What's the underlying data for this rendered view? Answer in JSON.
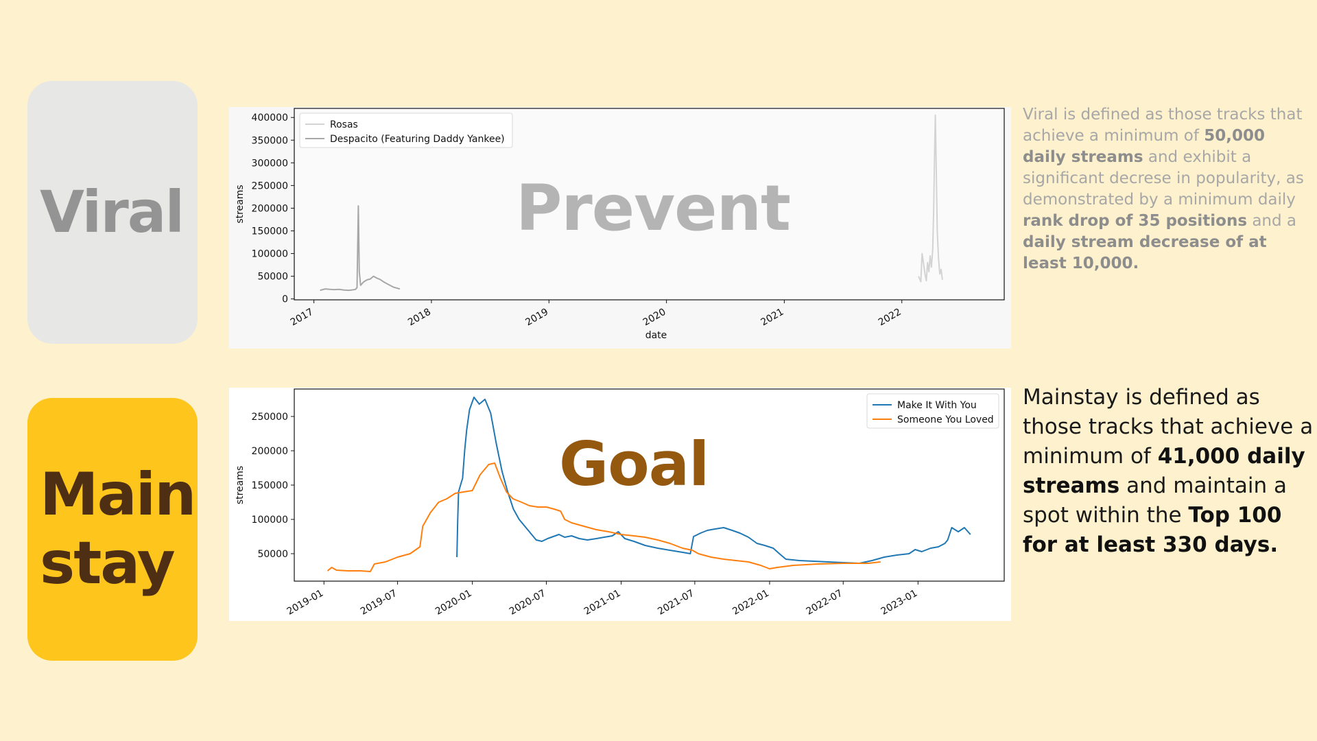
{
  "cards": {
    "viral": "Viral",
    "mainstay": "Main\nstay"
  },
  "overlays": {
    "prevent": "Prevent",
    "goal": "Goal"
  },
  "descriptions": {
    "viral": {
      "t1": "Viral is defined as those tracks that achieve a minimum of ",
      "b1": "50,000 daily streams",
      "t2": " and exhibit a significant decrese in popularity, as demonstrated by a minimum daily ",
      "b2": "rank drop of 35 positions",
      "t3": " and a ",
      "b3": "daily stream decrease of at least 10,000."
    },
    "mainstay": {
      "t1": "Mainstay is defined as those tracks that achieve a minimum of ",
      "b1": "41,000 daily streams",
      "t2": " and maintain a spot within the ",
      "b2": "Top 100 for at least 330 days."
    }
  },
  "chart_data": [
    {
      "type": "line",
      "xlabel": "date",
      "ylabel": "streams",
      "x_ticks": [
        "2017",
        "2018",
        "2019",
        "2020",
        "2021",
        "2022"
      ],
      "y_ticks": [
        0,
        50000,
        100000,
        150000,
        200000,
        250000,
        300000,
        350000,
        400000
      ],
      "xlim": [
        "2016-11-01",
        "2022-11-15"
      ],
      "ylim": [
        -2000,
        420000
      ],
      "legend": "top-left",
      "grid": false,
      "series": [
        {
          "name": "Rosas",
          "color": "#d3d3d3",
          "points": [
            [
              "2022-02-22",
              50000
            ],
            [
              "2022-03-01",
              38000
            ],
            [
              "2022-03-05",
              100000
            ],
            [
              "2022-03-10",
              75000
            ],
            [
              "2022-03-14",
              55000
            ],
            [
              "2022-03-18",
              40000
            ],
            [
              "2022-03-22",
              80000
            ],
            [
              "2022-03-26",
              60000
            ],
            [
              "2022-03-30",
              95000
            ],
            [
              "2022-04-03",
              70000
            ],
            [
              "2022-04-07",
              110000
            ],
            [
              "2022-04-10",
              200000
            ],
            [
              "2022-04-13",
              330000
            ],
            [
              "2022-04-15",
              405000
            ],
            [
              "2022-04-18",
              280000
            ],
            [
              "2022-04-21",
              150000
            ],
            [
              "2022-04-25",
              90000
            ],
            [
              "2022-04-29",
              55000
            ],
            [
              "2022-05-03",
              65000
            ],
            [
              "2022-05-07",
              42000
            ]
          ]
        },
        {
          "name": "Despacito (Featuring Daddy Yankee)",
          "color": "#a7a7a7",
          "points": [
            [
              "2017-01-20",
              19000
            ],
            [
              "2017-02-05",
              22000
            ],
            [
              "2017-02-20",
              21000
            ],
            [
              "2017-03-05",
              20500
            ],
            [
              "2017-03-20",
              21000
            ],
            [
              "2017-04-05",
              19500
            ],
            [
              "2017-04-20",
              19000
            ],
            [
              "2017-05-01",
              20000
            ],
            [
              "2017-05-10",
              21000
            ],
            [
              "2017-05-15",
              25000
            ],
            [
              "2017-05-19",
              205000
            ],
            [
              "2017-05-22",
              60000
            ],
            [
              "2017-05-26",
              30000
            ],
            [
              "2017-06-05",
              38000
            ],
            [
              "2017-06-15",
              42000
            ],
            [
              "2017-06-25",
              44000
            ],
            [
              "2017-07-05",
              50000
            ],
            [
              "2017-07-15",
              46000
            ],
            [
              "2017-07-25",
              43000
            ],
            [
              "2017-08-05",
              38000
            ],
            [
              "2017-08-15",
              34000
            ],
            [
              "2017-08-25",
              30000
            ],
            [
              "2017-09-05",
              26000
            ],
            [
              "2017-09-15",
              24000
            ],
            [
              "2017-09-25",
              22000
            ]
          ]
        }
      ]
    },
    {
      "type": "line",
      "xlabel": "",
      "ylabel": "streams",
      "x_ticks": [
        "2019-01",
        "2019-07",
        "2020-01",
        "2020-07",
        "2021-01",
        "2021-07",
        "2022-01",
        "2022-07",
        "2023-01"
      ],
      "y_ticks": [
        50000,
        100000,
        150000,
        200000,
        250000
      ],
      "xlim": [
        "2018-10-20",
        "2023-08-01"
      ],
      "ylim": [
        10000,
        290000
      ],
      "legend": "top-right",
      "grid": false,
      "series": [
        {
          "name": "Make It With You",
          "color": "#1f77b4",
          "points": [
            [
              "2019-11-24",
              45000
            ],
            [
              "2019-11-26",
              100000
            ],
            [
              "2019-11-28",
              140000
            ],
            [
              "2019-12-03",
              150000
            ],
            [
              "2019-12-08",
              160000
            ],
            [
              "2019-12-13",
              200000
            ],
            [
              "2019-12-18",
              230000
            ],
            [
              "2019-12-25",
              260000
            ],
            [
              "2020-01-05",
              278000
            ],
            [
              "2020-01-18",
              268000
            ],
            [
              "2020-02-01",
              275000
            ],
            [
              "2020-02-15",
              255000
            ],
            [
              "2020-02-29",
              210000
            ],
            [
              "2020-03-14",
              170000
            ],
            [
              "2020-03-28",
              140000
            ],
            [
              "2020-04-11",
              115000
            ],
            [
              "2020-04-25",
              100000
            ],
            [
              "2020-05-09",
              90000
            ],
            [
              "2020-05-23",
              80000
            ],
            [
              "2020-06-06",
              70000
            ],
            [
              "2020-06-20",
              68000
            ],
            [
              "2020-07-04",
              72000
            ],
            [
              "2020-07-18",
              75000
            ],
            [
              "2020-08-01",
              78000
            ],
            [
              "2020-08-15",
              74000
            ],
            [
              "2020-09-01",
              76000
            ],
            [
              "2020-09-20",
              72000
            ],
            [
              "2020-10-10",
              70000
            ],
            [
              "2020-11-01",
              72000
            ],
            [
              "2020-11-20",
              74000
            ],
            [
              "2020-12-10",
              76000
            ],
            [
              "2020-12-25",
              82000
            ],
            [
              "2021-01-10",
              72000
            ],
            [
              "2021-02-01",
              68000
            ],
            [
              "2021-03-01",
              62000
            ],
            [
              "2021-04-01",
              58000
            ],
            [
              "2021-05-01",
              55000
            ],
            [
              "2021-06-01",
              52000
            ],
            [
              "2021-06-20",
              50000
            ],
            [
              "2021-06-28",
              75000
            ],
            [
              "2021-07-15",
              80000
            ],
            [
              "2021-08-01",
              84000
            ],
            [
              "2021-08-20",
              86000
            ],
            [
              "2021-09-10",
              88000
            ],
            [
              "2021-10-01",
              84000
            ],
            [
              "2021-10-20",
              80000
            ],
            [
              "2021-11-10",
              74000
            ],
            [
              "2021-12-01",
              65000
            ],
            [
              "2021-12-20",
              62000
            ],
            [
              "2022-01-10",
              58000
            ],
            [
              "2022-01-25",
              50000
            ],
            [
              "2022-02-10",
              42000
            ],
            [
              "2022-03-15",
              40000
            ],
            [
              "2022-04-20",
              39000
            ],
            [
              "2022-05-25",
              38000
            ],
            [
              "2022-07-01",
              37000
            ],
            [
              "2022-08-10",
              36000
            ],
            [
              "2022-09-10",
              40000
            ],
            [
              "2022-10-10",
              45000
            ],
            [
              "2022-11-10",
              48000
            ],
            [
              "2022-12-10",
              50000
            ],
            [
              "2022-12-25",
              56000
            ],
            [
              "2023-01-10",
              53000
            ],
            [
              "2023-02-01",
              58000
            ],
            [
              "2023-02-20",
              60000
            ],
            [
              "2023-03-08",
              65000
            ],
            [
              "2023-03-15",
              70000
            ],
            [
              "2023-03-25",
              88000
            ],
            [
              "2023-04-10",
              82000
            ],
            [
              "2023-04-25",
              88000
            ],
            [
              "2023-05-10",
              78000
            ]
          ]
        },
        {
          "name": "Someone You Loved",
          "color": "#ff7f0e",
          "points": [
            [
              "2019-01-10",
              25000
            ],
            [
              "2019-01-20",
              30000
            ],
            [
              "2019-02-01",
              26000
            ],
            [
              "2019-03-01",
              25000
            ],
            [
              "2019-04-01",
              25000
            ],
            [
              "2019-04-25",
              24000
            ],
            [
              "2019-05-05",
              35000
            ],
            [
              "2019-06-01",
              38000
            ],
            [
              "2019-07-01",
              45000
            ],
            [
              "2019-08-01",
              50000
            ],
            [
              "2019-08-25",
              60000
            ],
            [
              "2019-09-01",
              90000
            ],
            [
              "2019-09-20",
              110000
            ],
            [
              "2019-10-10",
              125000
            ],
            [
              "2019-10-30",
              130000
            ],
            [
              "2019-11-20",
              138000
            ],
            [
              "2019-12-10",
              140000
            ],
            [
              "2020-01-01",
              142000
            ],
            [
              "2020-01-20",
              165000
            ],
            [
              "2020-02-10",
              180000
            ],
            [
              "2020-02-25",
              182000
            ],
            [
              "2020-03-10",
              160000
            ],
            [
              "2020-03-25",
              140000
            ],
            [
              "2020-04-10",
              130000
            ],
            [
              "2020-05-01",
              125000
            ],
            [
              "2020-05-20",
              120000
            ],
            [
              "2020-06-10",
              118000
            ],
            [
              "2020-07-01",
              118000
            ],
            [
              "2020-07-20",
              115000
            ],
            [
              "2020-08-05",
              112000
            ],
            [
              "2020-08-15",
              100000
            ],
            [
              "2020-09-01",
              95000
            ],
            [
              "2020-10-01",
              90000
            ],
            [
              "2020-11-01",
              85000
            ],
            [
              "2020-12-01",
              82000
            ],
            [
              "2021-01-01",
              78000
            ],
            [
              "2021-02-01",
              76000
            ],
            [
              "2021-03-01",
              74000
            ],
            [
              "2021-04-01",
              70000
            ],
            [
              "2021-05-01",
              65000
            ],
            [
              "2021-06-01",
              58000
            ],
            [
              "2021-06-25",
              55000
            ],
            [
              "2021-07-10",
              50000
            ],
            [
              "2021-08-10",
              45000
            ],
            [
              "2021-09-10",
              42000
            ],
            [
              "2021-10-10",
              40000
            ],
            [
              "2021-11-10",
              38000
            ],
            [
              "2021-12-10",
              33000
            ],
            [
              "2022-01-01",
              28000
            ],
            [
              "2022-01-20",
              30000
            ],
            [
              "2022-03-01",
              33000
            ],
            [
              "2022-05-01",
              35000
            ],
            [
              "2022-07-01",
              36000
            ],
            [
              "2022-09-01",
              36000
            ],
            [
              "2022-10-01",
              38000
            ]
          ]
        }
      ]
    }
  ]
}
